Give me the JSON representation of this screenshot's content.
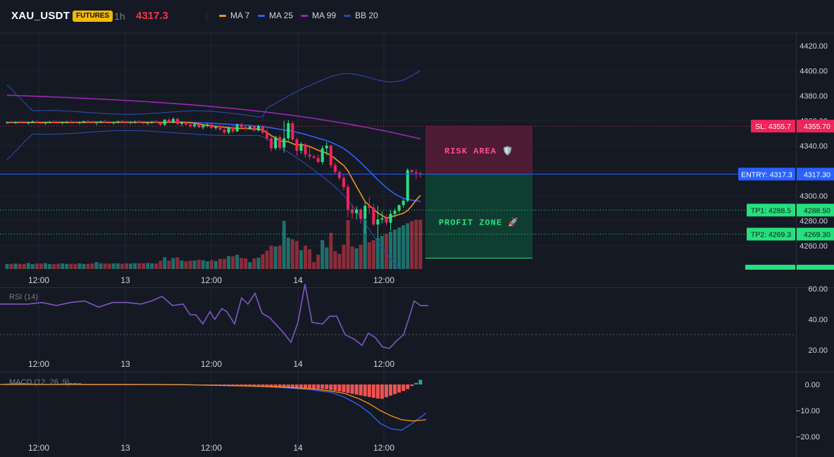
{
  "header": {
    "symbol": "XAU_USDT",
    "badge": "FUTURES",
    "timeframe": "1h",
    "price": "4317.3",
    "legend": [
      {
        "label": "MA 7",
        "color": "#f7931a"
      },
      {
        "label": "MA 25",
        "color": "#2962ff"
      },
      {
        "label": "MA 99",
        "color": "#9c27b0"
      },
      {
        "label": "BB 20",
        "color": "#2a4aa8"
      }
    ]
  },
  "colors": {
    "background": "#151924",
    "up": "#26e07f",
    "down": "#f0235b",
    "volume_up": "#1f6f6a",
    "volume_down": "#8a2d3a",
    "entry": "#2962ff",
    "sl": "#f0235b",
    "tp": "#26e07f",
    "rsi": "#7e57c2",
    "macd": "#2962ff",
    "signal": "#f7931a",
    "hist_neg": "#ef5350",
    "hist_pos": "#26a69a"
  },
  "chart_data": [
    {
      "type": "candlestick",
      "title": "XAU_USDT 1h",
      "x_labels": [
        "12:00",
        "13",
        "12:00",
        "14",
        "12:00"
      ],
      "y_ticks": [
        "4420.00",
        "4400.00",
        "4380.00",
        "4360.00",
        "4340.00",
        "4320.00",
        "4300.00",
        "4280.00",
        "4260.00"
      ],
      "ylim": [
        4250,
        4425
      ],
      "candles": [
        [
          4358.5,
          4359.5,
          4357.5,
          4358.8
        ],
        [
          4358.8,
          4359.8,
          4357.8,
          4358.4
        ],
        [
          4358.4,
          4359.6,
          4357.4,
          4359.1
        ],
        [
          4359.1,
          4360.0,
          4358.0,
          4358.6
        ],
        [
          4358.6,
          4359.6,
          4357.6,
          4358.0
        ],
        [
          4358.0,
          4359.5,
          4357.0,
          4358.9
        ],
        [
          4358.9,
          4360.1,
          4358.2,
          4359.4
        ],
        [
          4359.4,
          4360.2,
          4358.0,
          4358.5
        ],
        [
          4358.5,
          4359.4,
          4357.2,
          4357.9
        ],
        [
          4357.9,
          4359.2,
          4356.8,
          4358.6
        ],
        [
          4358.6,
          4359.9,
          4357.9,
          4359.2
        ],
        [
          4359.2,
          4360.3,
          4358.4,
          4358.8
        ],
        [
          4358.8,
          4359.7,
          4357.6,
          4358.1
        ],
        [
          4358.1,
          4359.4,
          4357.1,
          4358.7
        ],
        [
          4358.7,
          4359.8,
          4357.8,
          4359.3
        ],
        [
          4359.3,
          4360.4,
          4358.3,
          4358.9
        ],
        [
          4358.9,
          4359.9,
          4357.9,
          4358.3
        ],
        [
          4358.3,
          4359.6,
          4357.3,
          4358.9
        ],
        [
          4358.9,
          4360.0,
          4358.0,
          4359.6
        ],
        [
          4359.6,
          4360.6,
          4358.6,
          4358.8
        ],
        [
          4358.8,
          4359.8,
          4357.6,
          4358.2
        ],
        [
          4358.2,
          4359.5,
          4356.5,
          4358.8
        ],
        [
          4358.8,
          4360.2,
          4357.9,
          4359.4
        ],
        [
          4359.4,
          4360.5,
          4358.3,
          4358.7
        ],
        [
          4358.7,
          4359.6,
          4357.5,
          4358.2
        ],
        [
          4358.2,
          4359.3,
          4357.0,
          4358.8
        ],
        [
          4358.8,
          4360.1,
          4357.8,
          4359.5
        ],
        [
          4359.5,
          4360.6,
          4358.5,
          4358.9
        ],
        [
          4358.9,
          4359.9,
          4357.6,
          4358.3
        ],
        [
          4358.3,
          4359.4,
          4357.2,
          4358.9
        ],
        [
          4358.9,
          4360.0,
          4357.6,
          4359.3
        ],
        [
          4359.3,
          4360.4,
          4358.1,
          4358.6
        ],
        [
          4358.6,
          4359.6,
          4357.2,
          4357.9
        ],
        [
          4357.9,
          4359.1,
          4356.6,
          4358.6
        ],
        [
          4358.6,
          4359.8,
          4357.5,
          4359.2
        ],
        [
          4359.2,
          4360.5,
          4358.3,
          4358.5
        ],
        [
          4358.5,
          4359.5,
          4355.8,
          4356.8
        ],
        [
          4356.8,
          4361.5,
          4355.8,
          4360.8
        ],
        [
          4360.8,
          4362.0,
          4358.2,
          4359.0
        ],
        [
          4359.0,
          4363.0,
          4357.8,
          4361.5
        ],
        [
          4361.5,
          4362.2,
          4356.6,
          4357.5
        ],
        [
          4357.5,
          4359.5,
          4355.6,
          4358.8
        ],
        [
          4358.8,
          4359.6,
          4356.2,
          4357.0
        ],
        [
          4357.0,
          4358.0,
          4354.2,
          4355.5
        ],
        [
          4355.5,
          4358.0,
          4354.2,
          4357.2
        ],
        [
          4357.2,
          4358.5,
          4354.2,
          4354.8
        ],
        [
          4354.8,
          4357.0,
          4353.0,
          4356.5
        ],
        [
          4356.5,
          4358.2,
          4354.8,
          4357.0
        ],
        [
          4357.0,
          4357.5,
          4353.4,
          4354.2
        ],
        [
          4354.2,
          4356.2,
          4352.6,
          4355.8
        ],
        [
          4355.8,
          4356.8,
          4352.0,
          4353.0
        ],
        [
          4353.0,
          4354.0,
          4349.2,
          4350.5
        ],
        [
          4350.5,
          4355.5,
          4349.2,
          4354.8
        ],
        [
          4354.8,
          4356.2,
          4350.0,
          4351.5
        ],
        [
          4351.5,
          4358.0,
          4351.0,
          4357.0
        ],
        [
          4357.0,
          4358.5,
          4353.2,
          4355.0
        ],
        [
          4355.0,
          4356.8,
          4351.8,
          4353.5
        ],
        [
          4353.5,
          4356.0,
          4353.0,
          4355.5
        ],
        [
          4355.5,
          4356.2,
          4351.2,
          4352.2
        ],
        [
          4352.2,
          4356.8,
          4351.4,
          4355.8
        ],
        [
          4355.8,
          4356.5,
          4349.2,
          4350.5
        ],
        [
          4350.5,
          4353.5,
          4344.2,
          4346.0
        ],
        [
          4346.0,
          4347.5,
          4335.5,
          4338.0
        ],
        [
          4338.0,
          4348.0,
          4336.5,
          4347.0
        ],
        [
          4347.0,
          4348.5,
          4336.5,
          4338.5
        ],
        [
          4338.5,
          4360.0,
          4334.5,
          4346.0
        ],
        [
          4346.0,
          4360.5,
          4344.2,
          4358.0
        ],
        [
          4358.0,
          4359.5,
          4344.0,
          4345.0
        ],
        [
          4345.0,
          4346.5,
          4332.0,
          4336.0
        ],
        [
          4336.0,
          4343.0,
          4333.5,
          4341.0
        ],
        [
          4341.0,
          4342.5,
          4330.5,
          4333.0
        ],
        [
          4333.0,
          4339.0,
          4329.0,
          4331.5
        ],
        [
          4331.5,
          4333.0,
          4330.0,
          4330.2
        ],
        [
          4330.2,
          4333.0,
          4326.0,
          4327.0
        ],
        [
          4327.0,
          4340.0,
          4325.0,
          4338.0
        ],
        [
          4338.0,
          4343.0,
          4332.0,
          4340.0
        ],
        [
          4340.0,
          4341.0,
          4322.0,
          4324.5
        ],
        [
          4324.5,
          4326.5,
          4317.5,
          4319.0
        ],
        [
          4319.0,
          4320.0,
          4312.5,
          4314.2
        ],
        [
          4314.2,
          4317.0,
          4304.5,
          4307.0
        ],
        [
          4307.0,
          4309.0,
          4283.0,
          4289.0
        ],
        [
          4289.0,
          4293.0,
          4281.5,
          4286.0
        ],
        [
          4286.0,
          4291.5,
          4281.0,
          4289.0
        ],
        [
          4289.0,
          4290.0,
          4277.5,
          4281.5
        ],
        [
          4281.5,
          4296.0,
          4270.0,
          4292.0
        ],
        [
          4292.0,
          4299.0,
          4285.0,
          4290.5
        ],
        [
          4290.5,
          4293.5,
          4276.0,
          4277.0
        ],
        [
          4277.0,
          4292.0,
          4266.0,
          4281.0
        ],
        [
          4281.0,
          4287.5,
          4278.0,
          4282.0
        ],
        [
          4282.0,
          4285.0,
          4276.0,
          4278.5
        ],
        [
          4278.5,
          4288.5,
          4272.0,
          4285.5
        ],
        [
          4285.5,
          4290.0,
          4282.5,
          4288.0
        ],
        [
          4288.0,
          4293.0,
          4286.5,
          4292.5
        ],
        [
          4292.5,
          4297.5,
          4290.5,
          4296.0
        ],
        [
          4296.0,
          4322.0,
          4295.0,
          4320.5
        ],
        [
          4320.5,
          4321.0,
          4318.0,
          4319.0
        ],
        [
          4319.0,
          4321.5,
          4313.5,
          4318.0
        ],
        [
          4318.0,
          4319.5,
          4314.5,
          4317.3
        ]
      ],
      "ma7": [
        4358.6,
        4358.6,
        4358.6,
        4358.7,
        4358.6,
        4358.6,
        4358.6,
        4358.7,
        4358.7,
        4358.7,
        4358.7,
        4358.7,
        4358.7,
        4358.7,
        4358.7,
        4358.7,
        4358.7,
        4358.7,
        4358.7,
        4358.8,
        4358.8,
        4358.8,
        4358.8,
        4358.8,
        4358.7,
        4358.7,
        4358.8,
        4358.8,
        4358.8,
        4358.8,
        4358.8,
        4358.9,
        4358.8,
        4358.7,
        4358.8,
        4358.8,
        4358.6,
        4358.8,
        4358.8,
        4359.0,
        4358.9,
        4358.9,
        4358.7,
        4358.5,
        4358.1,
        4357.5,
        4356.8,
        4356.3,
        4355.9,
        4355.6,
        4355.4,
        4354.9,
        4354.5,
        4354.2,
        4353.9,
        4353.9,
        4353.9,
        4353.6,
        4353.4,
        4353.5,
        4352.4,
        4350.7,
        4348.1,
        4346.3,
        4344.1,
        4343.2,
        4343.3,
        4341.7,
        4340.6,
        4341.0,
        4340.5,
        4339.4,
        4337.9,
        4336.4,
        4335.2,
        4334.2,
        4332.1,
        4329.8,
        4326.8,
        4324.3,
        4319.9,
        4313.5,
        4307.4,
        4301.5,
        4295.3,
        4292.3,
        4289.3,
        4286.2,
        4284.3,
        4282.1,
        4283.0,
        4284.0,
        4285.0,
        4286.0,
        4288.2,
        4292.1,
        4296.7,
        4300.3
      ],
      "ma25": [
        4358.7,
        4358.7,
        4358.7,
        4358.8,
        4358.8,
        4358.7,
        4358.7,
        4358.7,
        4358.7,
        4358.7,
        4358.7,
        4358.8,
        4358.8,
        4358.7,
        4358.7,
        4358.7,
        4358.7,
        4358.7,
        4358.7,
        4358.7,
        4358.7,
        4358.7,
        4358.7,
        4358.7,
        4358.7,
        4358.7,
        4358.7,
        4358.7,
        4358.7,
        4358.7,
        4358.7,
        4358.7,
        4358.7,
        4358.7,
        4358.7,
        4358.7,
        4358.7,
        4358.7,
        4358.8,
        4358.8,
        4358.8,
        4358.8,
        4358.8,
        4358.7,
        4358.6,
        4358.5,
        4358.3,
        4358.2,
        4358.0,
        4357.8,
        4357.6,
        4357.4,
        4357.2,
        4357.0,
        4356.8,
        4356.6,
        4356.4,
        4356.2,
        4355.9,
        4355.7,
        4355.3,
        4354.9,
        4354.3,
        4353.8,
        4353.1,
        4352.6,
        4352.1,
        4351.5,
        4350.7,
        4350.0,
        4349.1,
        4348.1,
        4347.1,
        4346.1,
        4345.1,
        4344.1,
        4342.8,
        4341.3,
        4339.6,
        4337.8,
        4335.4,
        4332.6,
        4329.7,
        4326.4,
        4323.1,
        4319.8,
        4316.2,
        4312.8,
        4309.7,
        4306.6,
        4303.9,
        4301.6,
        4299.6,
        4297.9,
        4297.2,
        4296.5,
        4296.0,
        4295.5
      ]
    },
    {
      "type": "line",
      "title": "RSI (14)",
      "y_ticks": [
        "60.00",
        "40.00",
        "20.00"
      ],
      "ylim": [
        15,
        65
      ]
    },
    {
      "type": "bar+line",
      "title": "MACD (12, 26, 9)",
      "y_ticks": [
        "0.00",
        "−10.00",
        "−20.00"
      ],
      "ylim": [
        -22,
        3
      ]
    }
  ],
  "overlay": {
    "risk_label": "RISK AREA 🛡️",
    "profit_label": "PROFIT ZONE 🚀",
    "entry": 4317.3,
    "sl": 4355.7,
    "tp1": 4288.5,
    "tp2": 4269.3,
    "tp3": 4250.1
  },
  "price_tags": [
    {
      "label": "SL: 4355.7",
      "value": "4355.70",
      "kind": "sl",
      "price": 4355.7
    },
    {
      "label": "ENTRY: 4317.3",
      "value": "4317.30",
      "kind": "entry",
      "price": 4317.3
    },
    {
      "label": "TP1: 4288.5",
      "value": "4288.50",
      "kind": "tp",
      "price": 4288.5
    },
    {
      "label": "TP2: 4269.3",
      "value": "4269.30",
      "kind": "tp",
      "price": 4269.3
    }
  ]
}
